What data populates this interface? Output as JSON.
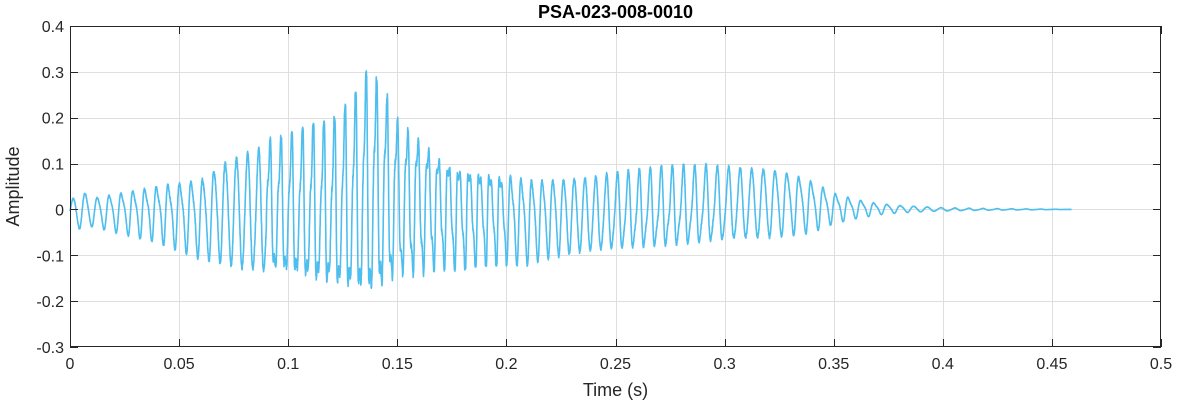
{
  "chart_data": {
    "type": "line",
    "title": "PSA-023-008-0010",
    "xlabel": "Time (s)",
    "ylabel": "Amplitude",
    "xlim": [
      0,
      0.5
    ],
    "ylim": [
      -0.3,
      0.4
    ],
    "grid": true,
    "x_ticks": [
      0,
      0.05,
      0.1,
      0.15,
      0.2,
      0.25,
      0.3,
      0.35,
      0.4,
      0.45,
      0.5
    ],
    "x_tick_labels": [
      "0",
      "0.05",
      "0.1",
      "0.15",
      "0.2",
      "0.25",
      "0.3",
      "0.35",
      "0.4",
      "0.45",
      "0.5"
    ],
    "y_ticks": [
      -0.3,
      -0.2,
      -0.1,
      0,
      0.1,
      0.2,
      0.3,
      0.4
    ],
    "y_tick_labels": [
      "-0.3",
      "-0.2",
      "-0.1",
      "0",
      "0.1",
      "0.2",
      "0.3",
      "0.4"
    ],
    "series": [
      {
        "color": "#4DBEEE",
        "x_start": 0,
        "x_end": 0.459,
        "envelope": {
          "t": [
            0,
            0.005,
            0.01,
            0.02,
            0.03,
            0.04,
            0.05,
            0.06,
            0.07,
            0.08,
            0.09,
            0.1,
            0.11,
            0.12,
            0.13,
            0.137,
            0.145,
            0.15,
            0.16,
            0.17,
            0.18,
            0.19,
            0.2,
            0.21,
            0.22,
            0.25,
            0.28,
            0.3,
            0.32,
            0.33,
            0.34,
            0.35,
            0.36,
            0.37,
            0.38,
            0.39,
            0.4,
            0.42,
            0.459
          ],
          "upper": [
            0.02,
            0.05,
            0.03,
            0.04,
            0.05,
            0.06,
            0.07,
            0.08,
            0.12,
            0.14,
            0.15,
            0.16,
            0.18,
            0.19,
            0.24,
            0.305,
            0.25,
            0.2,
            0.17,
            0.13,
            0.11,
            0.1,
            0.09,
            0.08,
            0.08,
            0.085,
            0.095,
            0.1,
            0.1,
            0.09,
            0.07,
            0.04,
            0.025,
            0.015,
            0.01,
            0.007,
            0.004,
            0.002,
            0.0
          ],
          "lower": [
            -0.03,
            -0.05,
            -0.04,
            -0.05,
            -0.06,
            -0.07,
            -0.09,
            -0.11,
            -0.13,
            -0.15,
            -0.16,
            -0.17,
            -0.19,
            -0.2,
            -0.22,
            -0.24,
            -0.2,
            -0.17,
            -0.15,
            -0.13,
            -0.13,
            -0.12,
            -0.12,
            -0.12,
            -0.11,
            -0.1,
            -0.09,
            -0.08,
            -0.07,
            -0.06,
            -0.05,
            -0.03,
            -0.02,
            -0.012,
            -0.008,
            -0.006,
            -0.004,
            -0.002,
            0.0
          ]
        }
      }
    ]
  }
}
